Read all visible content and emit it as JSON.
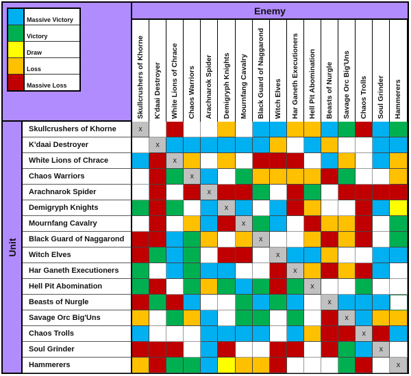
{
  "legend": [
    {
      "code": "B",
      "label": "Massive Victory",
      "color": "#00b0f0"
    },
    {
      "code": "G",
      "label": "Victory",
      "color": "#00b050"
    },
    {
      "code": "Y",
      "label": "Draw",
      "color": "#ffff00"
    },
    {
      "code": "O",
      "label": "Loss",
      "color": "#ffc000"
    },
    {
      "code": "R",
      "label": "Massive Loss",
      "color": "#c00000"
    }
  ],
  "header": {
    "enemy_label": "Enemy",
    "unit_label": "Unit"
  },
  "self_marker": "x",
  "units": [
    "Skullcrushers of Khorne",
    "K'daai Destroyer",
    "White Lions of Chrace",
    "Chaos Warriors",
    "Arachnarok Spider",
    "Demigryph Knights",
    "Mournfang Cavalry",
    "Black Guard of Naggarond",
    "Witch Elves",
    "Har Ganeth Executioners",
    "Hell Pit Abomination",
    "Beasts of Nurgle",
    "Savage Orc Big'Uns",
    "Chaos Trolls",
    "Soul Grinder",
    "Hammerers"
  ],
  "matrix": [
    [
      "X",
      "W",
      "R",
      "W",
      "W",
      "O",
      "W",
      "B",
      "B",
      "O",
      "O",
      "B",
      "G",
      "R",
      "B",
      "G"
    ],
    [
      "W",
      "X",
      "B",
      "B",
      "B",
      "B",
      "B",
      "B",
      "O",
      "W",
      "B",
      "O",
      "W",
      "W",
      "B",
      "B"
    ],
    [
      "B",
      "R",
      "X",
      "O",
      "W",
      "O",
      "W",
      "R",
      "R",
      "R",
      "W",
      "B",
      "O",
      "W",
      "B",
      "O"
    ],
    [
      "W",
      "R",
      "G",
      "X",
      "B",
      "W",
      "G",
      "O",
      "O",
      "O",
      "O",
      "R",
      "G",
      "W",
      "W",
      "O"
    ],
    [
      "W",
      "R",
      "W",
      "R",
      "X",
      "R",
      "R",
      "G",
      "W",
      "R",
      "G",
      "W",
      "R",
      "R",
      "R",
      "R"
    ],
    [
      "G",
      "R",
      "G",
      "W",
      "B",
      "X",
      "B",
      "W",
      "B",
      "R",
      "O",
      "W",
      "W",
      "R",
      "B",
      "Y"
    ],
    [
      "W",
      "R",
      "W",
      "O",
      "B",
      "R",
      "X",
      "G",
      "B",
      "W",
      "R",
      "O",
      "O",
      "R",
      "W",
      "G"
    ],
    [
      "R",
      "R",
      "B",
      "G",
      "O",
      "W",
      "O",
      "X",
      "W",
      "W",
      "O",
      "R",
      "O",
      "R",
      "W",
      "G"
    ],
    [
      "R",
      "G",
      "B",
      "G",
      "W",
      "R",
      "R",
      "W",
      "X",
      "B",
      "B",
      "O",
      "W",
      "W",
      "B",
      "B"
    ],
    [
      "G",
      "W",
      "B",
      "G",
      "B",
      "B",
      "W",
      "W",
      "R",
      "X",
      "O",
      "R",
      "O",
      "R",
      "B",
      "W"
    ],
    [
      "G",
      "R",
      "W",
      "G",
      "O",
      "G",
      "B",
      "G",
      "R",
      "G",
      "X",
      "W",
      "W",
      "G",
      "W",
      "W"
    ],
    [
      "R",
      "G",
      "R",
      "B",
      "W",
      "W",
      "G",
      "B",
      "G",
      "B",
      "W",
      "X",
      "B",
      "B",
      "B",
      "W"
    ],
    [
      "O",
      "W",
      "G",
      "O",
      "B",
      "W",
      "G",
      "G",
      "W",
      "G",
      "W",
      "R",
      "X",
      "B",
      "O",
      "O"
    ],
    [
      "B",
      "W",
      "W",
      "W",
      "B",
      "B",
      "B",
      "B",
      "W",
      "B",
      "O",
      "R",
      "R",
      "X",
      "R",
      "B"
    ],
    [
      "R",
      "R",
      "R",
      "W",
      "B",
      "R",
      "W",
      "W",
      "R",
      "R",
      "W",
      "R",
      "G",
      "B",
      "X",
      "W"
    ],
    [
      "O",
      "R",
      "G",
      "G",
      "B",
      "Y",
      "O",
      "O",
      "R",
      "W",
      "W",
      "W",
      "G",
      "R",
      "W",
      "X"
    ]
  ],
  "selected_cell": {
    "row": 11,
    "col": 15
  }
}
